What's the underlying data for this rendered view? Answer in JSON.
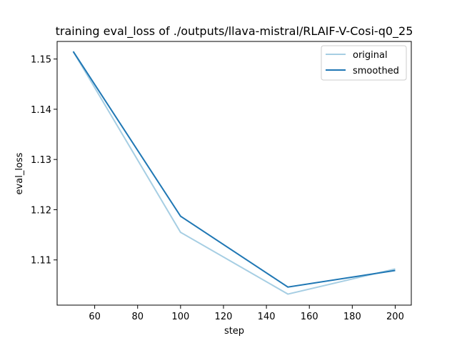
{
  "chart_data": {
    "type": "line",
    "title": "training eval_loss of ./outputs/llava-mistral/RLAIF-V-Cosi-q0_25",
    "xlabel": "step",
    "ylabel": "eval_loss",
    "xlim": [
      42.5,
      207.5
    ],
    "ylim": [
      1.101,
      1.1535
    ],
    "xticks": [
      60,
      80,
      100,
      120,
      140,
      160,
      180,
      200
    ],
    "yticks": [
      1.11,
      1.12,
      1.13,
      1.14,
      1.15
    ],
    "x": [
      50,
      100,
      150,
      200
    ],
    "series": [
      {
        "name": "original",
        "color": "#a6cee3",
        "values": [
          1.1515,
          1.1155,
          1.1032,
          1.1082
        ]
      },
      {
        "name": "smoothed",
        "color": "#1f77b4",
        "values": [
          1.1515,
          1.1187,
          1.1046,
          1.1079
        ]
      }
    ],
    "legend_position": "top-right",
    "grid": false
  }
}
